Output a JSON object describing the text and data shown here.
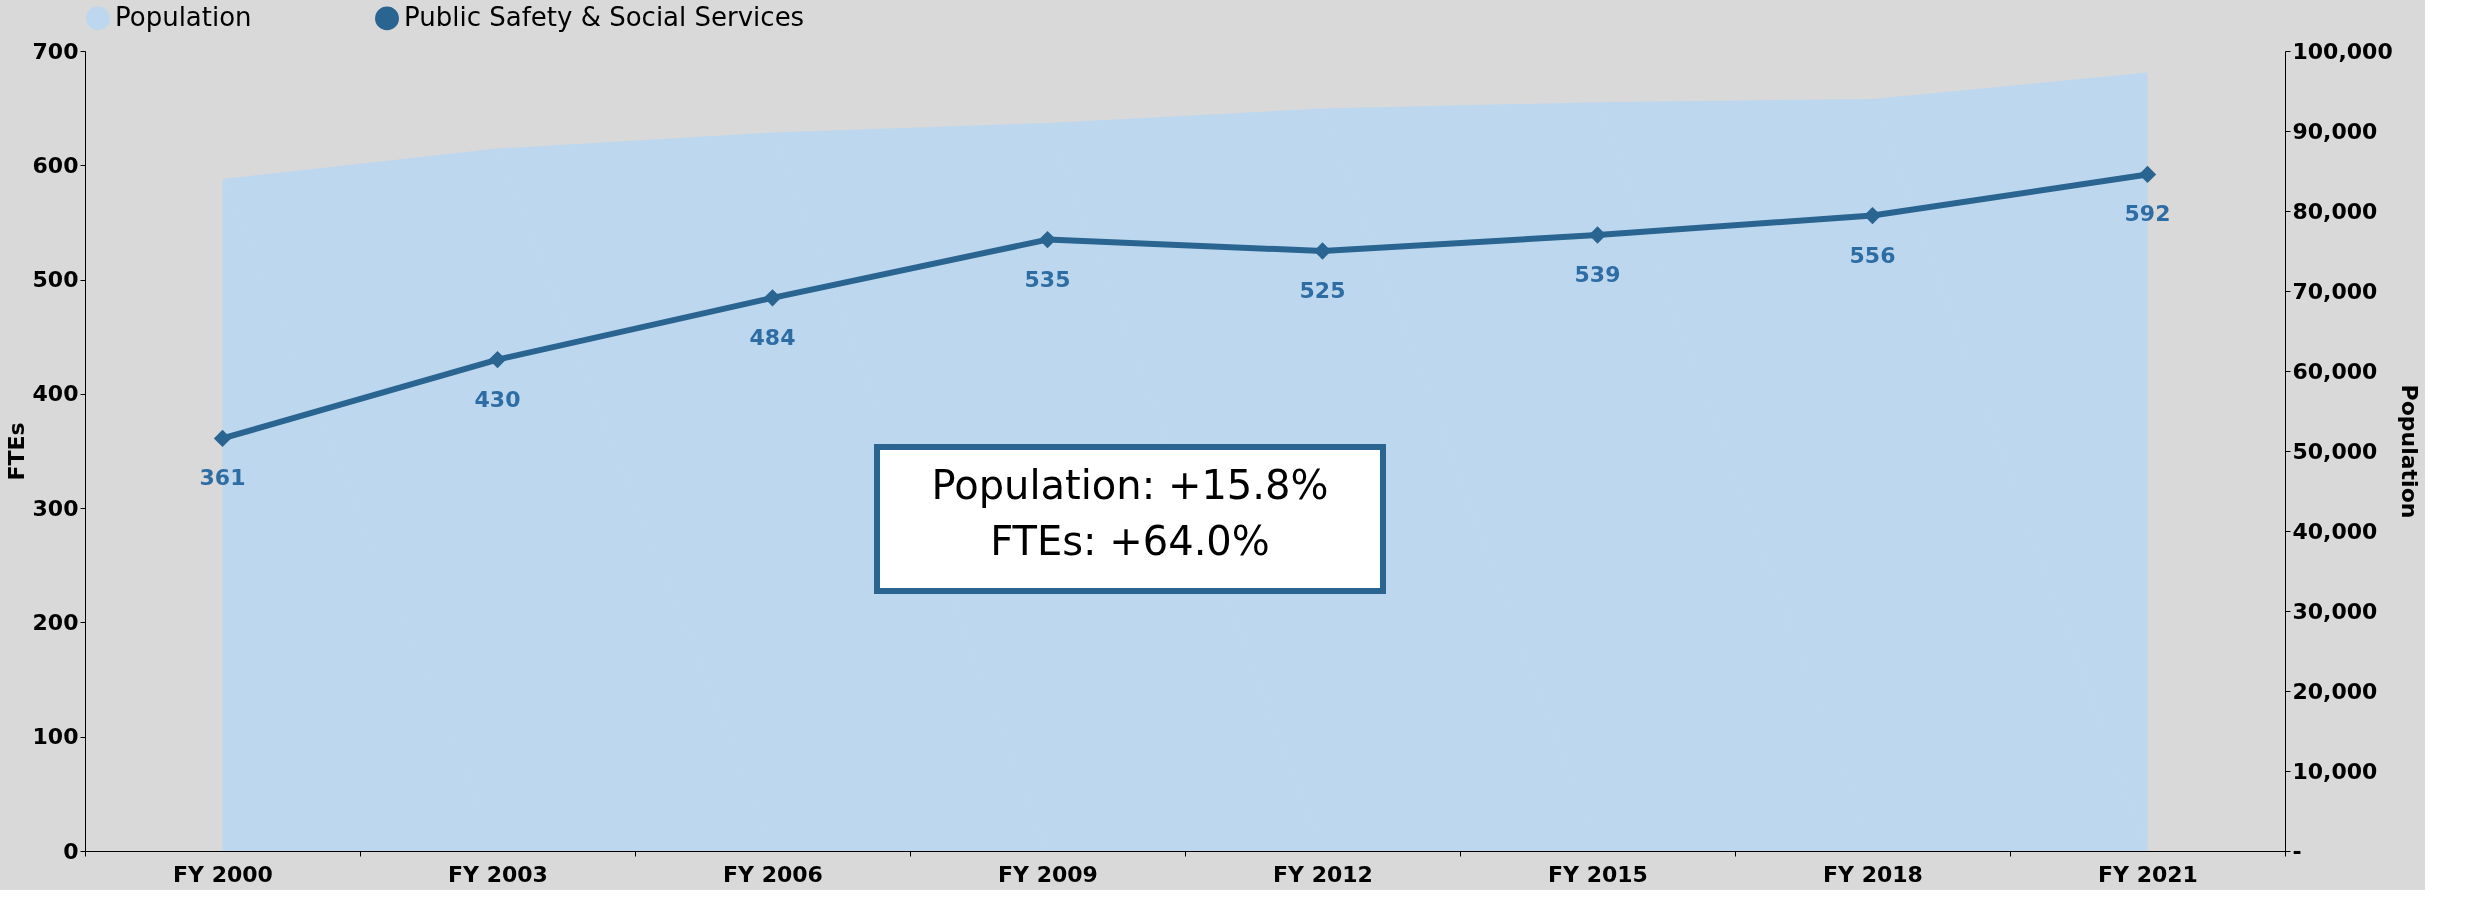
{
  "chart_data": {
    "type": "line",
    "ylabel": "FTEs",
    "y2label": "Population",
    "categories": [
      "FY 2000",
      "FY 2003",
      "FY 2006",
      "FY 2009",
      "FY 2012",
      "FY 2015",
      "FY 2018",
      "FY 2021"
    ],
    "series": [
      {
        "name": "Population",
        "type": "area",
        "axis": "y2",
        "color": "#bdd7ee",
        "values": [
          84000,
          87800,
          89800,
          91000,
          92800,
          93600,
          94000,
          97300
        ]
      },
      {
        "name": "Public Safety & Social Services",
        "color": "#2a6491",
        "marker": "diamond",
        "values": [
          361,
          430,
          484,
          535,
          525,
          539,
          556,
          592
        ],
        "value_labels": [
          "361",
          "430",
          "484",
          "535",
          "525",
          "539",
          "556",
          "592"
        ]
      }
    ],
    "ylim": [
      0,
      700
    ],
    "yticks": [
      0,
      100,
      200,
      300,
      400,
      500,
      600,
      700
    ],
    "y2lim": [
      0,
      100000
    ],
    "y2ticks": [
      {
        "value": 0,
        "label": "-"
      },
      {
        "value": 10000,
        "label": "10,000"
      },
      {
        "value": 20000,
        "label": "20,000"
      },
      {
        "value": 30000,
        "label": "30,000"
      },
      {
        "value": 40000,
        "label": "40,000"
      },
      {
        "value": 50000,
        "label": "50,000"
      },
      {
        "value": 60000,
        "label": "60,000"
      },
      {
        "value": 70000,
        "label": "70,000"
      },
      {
        "value": 80000,
        "label": "80,000"
      },
      {
        "value": 90000,
        "label": "90,000"
      },
      {
        "value": 100000,
        "label": "100,000"
      }
    ],
    "legend": "top",
    "annotations": [
      "Population:  +15.8%",
      "FTEs:  +64.0%"
    ]
  }
}
